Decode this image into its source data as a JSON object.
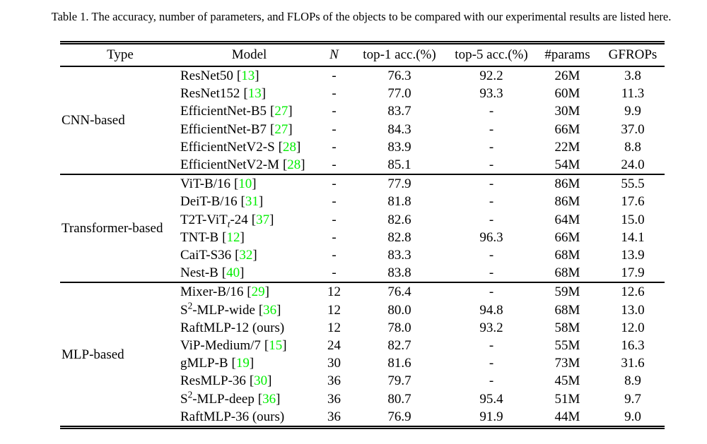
{
  "caption": "Table 1. The accuracy, number of parameters, and FLOPs of the objects to be compared with our experimental results are listed here.",
  "columns": [
    "Type",
    "Model",
    "N",
    "top-1 acc.(%)",
    "top-5 acc.(%)",
    "#params",
    "GFROPs"
  ],
  "colors": {
    "citation": "#00ee00",
    "text": "#000000",
    "background": "#ffffff",
    "rule": "#000000"
  },
  "groups": [
    {
      "type": "CNN-based",
      "rows": [
        {
          "pre": "ResNet50",
          "sup": "",
          "sub": "",
          "post": "",
          "cite_open": "[",
          "cite": "13",
          "cite_close": "]",
          "n": "-",
          "top1": "76.3",
          "top5": "92.2",
          "params": "26M",
          "gfrops": "3.8"
        },
        {
          "pre": "ResNet152",
          "sup": "",
          "sub": "",
          "post": "",
          "cite_open": "[",
          "cite": "13",
          "cite_close": "]",
          "n": "-",
          "top1": "77.0",
          "top5": "93.3",
          "params": "60M",
          "gfrops": "11.3"
        },
        {
          "pre": "EfficientNet-B5",
          "sup": "",
          "sub": "",
          "post": "",
          "cite_open": "[",
          "cite": "27",
          "cite_close": "]",
          "n": "-",
          "top1": "83.7",
          "top5": "-",
          "params": "30M",
          "gfrops": "9.9"
        },
        {
          "pre": "EfficientNet-B7",
          "sup": "",
          "sub": "",
          "post": "",
          "cite_open": "[",
          "cite": "27",
          "cite_close": "]",
          "n": "-",
          "top1": "84.3",
          "top5": "-",
          "params": "66M",
          "gfrops": "37.0"
        },
        {
          "pre": "EfficientNetV2-S",
          "sup": "",
          "sub": "",
          "post": "",
          "cite_open": "[",
          "cite": "28",
          "cite_close": "]",
          "n": "-",
          "top1": "83.9",
          "top5": "-",
          "params": "22M",
          "gfrops": "8.8"
        },
        {
          "pre": "EfficientNetV2-M",
          "sup": "",
          "sub": "",
          "post": "",
          "cite_open": "[",
          "cite": "28",
          "cite_close": "]",
          "n": "-",
          "top1": "85.1",
          "top5": "-",
          "params": "54M",
          "gfrops": "24.0"
        }
      ]
    },
    {
      "type": "Transformer-based",
      "rows": [
        {
          "pre": "ViT-B/16",
          "sup": "",
          "sub": "",
          "post": "",
          "cite_open": "[",
          "cite": "10",
          "cite_close": "]",
          "n": "-",
          "top1": "77.9",
          "top5": "-",
          "params": "86M",
          "gfrops": "55.5"
        },
        {
          "pre": "DeiT-B/16",
          "sup": "",
          "sub": "",
          "post": "",
          "cite_open": "[",
          "cite": "31",
          "cite_close": "]",
          "n": "-",
          "top1": "81.8",
          "top5": "-",
          "params": "86M",
          "gfrops": "17.6"
        },
        {
          "pre": "T2T-ViT",
          "sup": "",
          "sub": "t",
          "post": "-24",
          "cite_open": "[",
          "cite": "37",
          "cite_close": "]",
          "n": "-",
          "top1": "82.6",
          "top5": "-",
          "params": "64M",
          "gfrops": "15.0"
        },
        {
          "pre": "TNT-B",
          "sup": "",
          "sub": "",
          "post": "",
          "cite_open": "[",
          "cite": "12",
          "cite_close": "]",
          "n": "-",
          "top1": "82.8",
          "top5": "96.3",
          "params": "66M",
          "gfrops": "14.1"
        },
        {
          "pre": "CaiT-S36",
          "sup": "",
          "sub": "",
          "post": "",
          "cite_open": "[",
          "cite": "32",
          "cite_close": "]",
          "n": "-",
          "top1": "83.3",
          "top5": "-",
          "params": "68M",
          "gfrops": "13.9"
        },
        {
          "pre": "Nest-B",
          "sup": "",
          "sub": "",
          "post": "",
          "cite_open": "[",
          "cite": "40",
          "cite_close": "]",
          "n": "-",
          "top1": "83.8",
          "top5": "-",
          "params": "68M",
          "gfrops": "17.9"
        }
      ]
    },
    {
      "type": "MLP-based",
      "rows": [
        {
          "pre": "Mixer-B/16",
          "sup": "",
          "sub": "",
          "post": "",
          "cite_open": "[",
          "cite": "29",
          "cite_close": "]",
          "n": "12",
          "top1": "76.4",
          "top5": "-",
          "params": "59M",
          "gfrops": "12.6"
        },
        {
          "pre": "S",
          "sup": "2",
          "sub": "",
          "post": "-MLP-wide",
          "cite_open": "[",
          "cite": "36",
          "cite_close": "]",
          "n": "12",
          "top1": "80.0",
          "top5": "94.8",
          "params": "68M",
          "gfrops": "13.0"
        },
        {
          "pre": "RaftMLP-12 (ours)",
          "sup": "",
          "sub": "",
          "post": "",
          "cite_open": "",
          "cite": "",
          "cite_close": "",
          "n": "12",
          "top1": "78.0",
          "top5": "93.2",
          "params": "58M",
          "gfrops": "12.0"
        },
        {
          "pre": "ViP-Medium/7",
          "sup": "",
          "sub": "",
          "post": "",
          "cite_open": "[",
          "cite": "15",
          "cite_close": "]",
          "n": "24",
          "top1": "82.7",
          "top5": "-",
          "params": "55M",
          "gfrops": "16.3"
        },
        {
          "pre": "gMLP-B",
          "sup": "",
          "sub": "",
          "post": "",
          "cite_open": "[",
          "cite": "19",
          "cite_close": "]",
          "n": "30",
          "top1": "81.6",
          "top5": "-",
          "params": "73M",
          "gfrops": "31.6"
        },
        {
          "pre": "ResMLP-36",
          "sup": "",
          "sub": "",
          "post": "",
          "cite_open": "[",
          "cite": "30",
          "cite_close": "]",
          "n": "36",
          "top1": "79.7",
          "top5": "-",
          "params": "45M",
          "gfrops": "8.9"
        },
        {
          "pre": "S",
          "sup": "2",
          "sub": "",
          "post": "-MLP-deep",
          "cite_open": "[",
          "cite": "36",
          "cite_close": "]",
          "n": "36",
          "top1": "80.7",
          "top5": "95.4",
          "params": "51M",
          "gfrops": "9.7"
        },
        {
          "pre": "RaftMLP-36 (ours)",
          "sup": "",
          "sub": "",
          "post": "",
          "cite_open": "",
          "cite": "",
          "cite_close": "",
          "n": "36",
          "top1": "76.9",
          "top5": "91.9",
          "params": "44M",
          "gfrops": "9.0"
        }
      ]
    }
  ]
}
